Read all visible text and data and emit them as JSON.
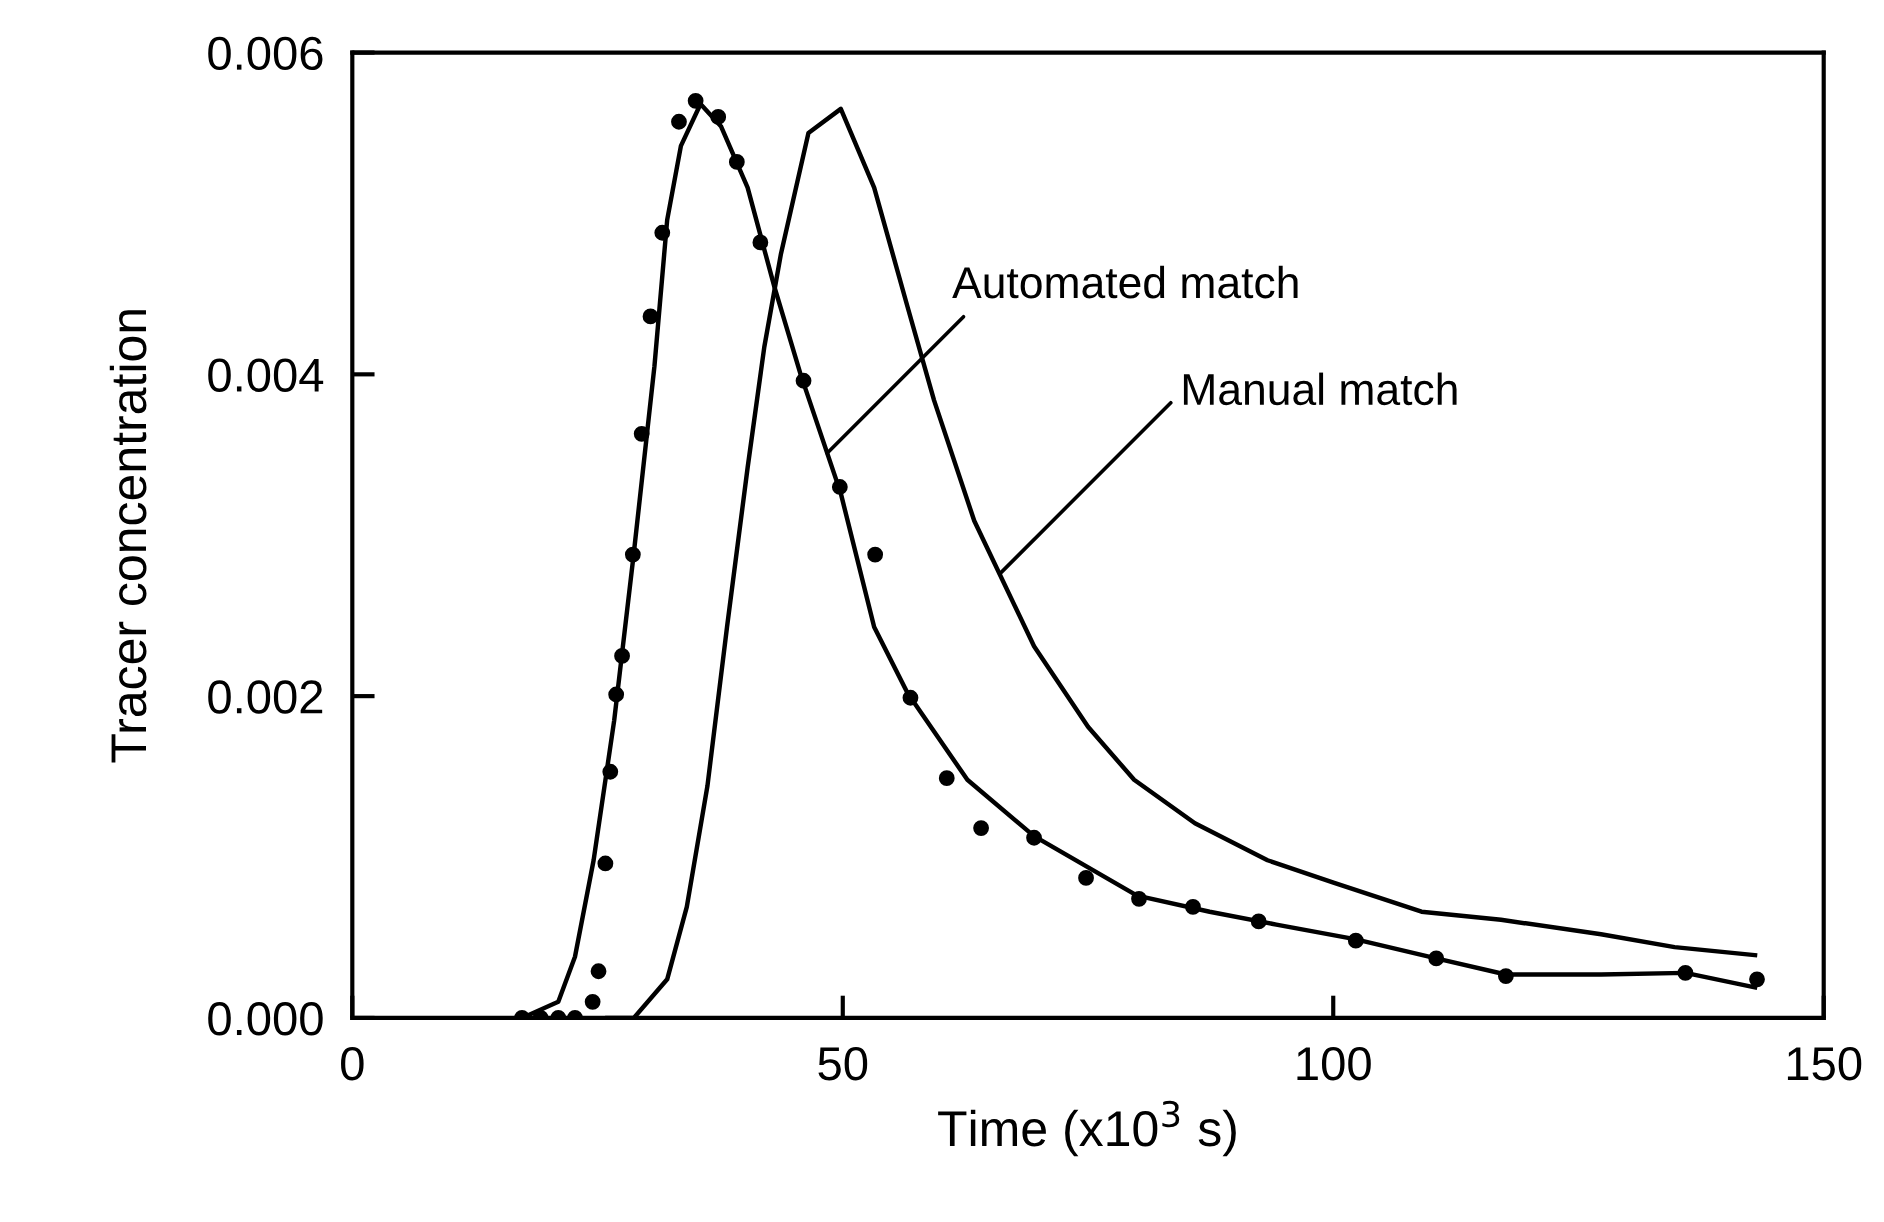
{
  "chart_data": {
    "type": "line",
    "xlabel": "Time (x10$^{3}$ s)",
    "ylabel": "Tracer concentration",
    "xlim": [
      0,
      150
    ],
    "ylim": [
      0,
      0.006
    ],
    "xticks": [
      0,
      50,
      100,
      150
    ],
    "yticks": [
      {
        "value": 0,
        "label": "0.000"
      },
      0.002,
      0.004,
      0.006
    ],
    "grid": false,
    "series": [
      {
        "type": "scatter",
        "marker": "circle",
        "color": "#000000",
        "x": [
          17.3,
          19.2,
          21.0,
          22.7,
          24.5,
          25.1,
          25.8,
          26.3,
          26.9,
          27.5,
          28.6,
          29.5,
          30.4,
          31.6,
          33.3,
          35.0,
          37.3,
          39.2,
          41.6,
          46.0,
          49.7,
          53.3,
          56.9,
          60.6,
          64.1,
          69.5,
          74.8,
          80.2,
          85.7,
          92.4,
          102.3,
          110.5,
          117.6,
          135.9,
          143.2
        ],
        "values": [
          0,
          0,
          0,
          0,
          0.0001,
          0.00029,
          0.00096,
          0.00153,
          0.00201,
          0.00225,
          0.00288,
          0.00363,
          0.00436,
          0.00488,
          0.00557,
          0.0057,
          0.0056,
          0.00532,
          0.00482,
          0.00396,
          0.0033,
          0.00288,
          0.00199,
          0.00149,
          0.00118,
          0.00112,
          0.00087,
          0.00074,
          0.00069,
          0.0006,
          0.00048,
          0.00037,
          0.00026,
          0.00028,
          0.00024
        ]
      },
      {
        "line_style": "solid",
        "marker": "none",
        "color": "#000000",
        "x": [
          17.3,
          21.0,
          22.7,
          24.6,
          26.7,
          28.7,
          30.8,
          32.1,
          33.5,
          35.5,
          37.6,
          40.3,
          43.0,
          45.7,
          49.8,
          53.2,
          56.6,
          62.7,
          69.5,
          80.0,
          87.4,
          94.2,
          102.2,
          110.5,
          117.6,
          127.3,
          135.9,
          143.0
        ],
        "values": [
          0,
          0.0001,
          0.00038,
          0.00098,
          0.00185,
          0.00289,
          0.00405,
          0.00496,
          0.00542,
          0.00568,
          0.00554,
          0.00516,
          0.00455,
          0.004,
          0.00326,
          0.00243,
          0.00202,
          0.00148,
          0.00113,
          0.00076,
          0.00066,
          0.00058,
          0.00049,
          0.00037,
          0.00027,
          0.00027,
          0.00028,
          0.00019
        ]
      },
      {
        "line_style": "solid",
        "marker": "none",
        "color": "#000000",
        "x": [
          26.0,
          28.7,
          32.1,
          34.1,
          36.2,
          38.2,
          40.3,
          42.0,
          43.7,
          46.5,
          49.8,
          53.2,
          56.6,
          59.3,
          63.4,
          69.5,
          75.0,
          79.7,
          85.9,
          93.3,
          100.1,
          109.0,
          117.1,
          127.3,
          134.8,
          143.0
        ],
        "values": [
          0,
          0,
          0.00024,
          0.00069,
          0.00144,
          0.00243,
          0.00342,
          0.00417,
          0.00475,
          0.0055,
          0.00565,
          0.00516,
          0.00442,
          0.00384,
          0.00309,
          0.00231,
          0.00181,
          0.00148,
          0.00121,
          0.00098,
          0.00084,
          0.00066,
          0.00061,
          0.00052,
          0.00044,
          0.00039
        ]
      }
    ],
    "annotations": [
      {
        "text": "Automated match",
        "x": 48.4,
        "y": 0.00351
      },
      {
        "text": "Manual match",
        "x": 66.0,
        "y": 0.00276
      }
    ]
  }
}
